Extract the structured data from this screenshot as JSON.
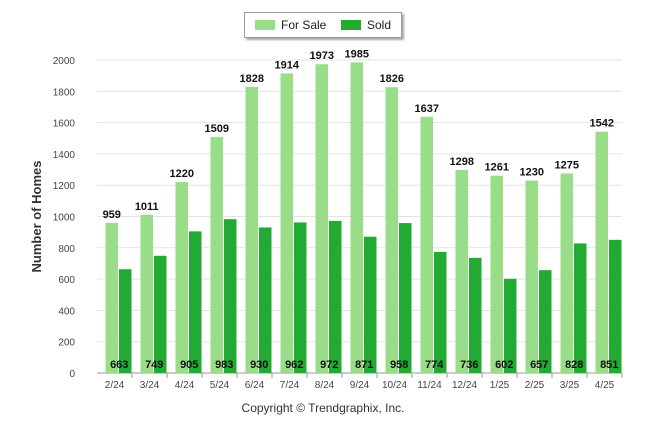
{
  "legend": {
    "for_sale": "For Sale",
    "sold": "Sold"
  },
  "footer": {
    "copyright": "Copyright © Trendgraphix, Inc."
  },
  "colors": {
    "for_sale": "#99dd88",
    "sold": "#22aa33",
    "grid": "#e3e3e3",
    "axis": "#999999"
  },
  "chart_data": {
    "type": "bar",
    "title": "",
    "xlabel": "",
    "ylabel": "Number of Homes",
    "ylim": [
      0,
      2000
    ],
    "yticks": [
      0,
      200,
      400,
      600,
      800,
      1000,
      1200,
      1400,
      1600,
      1800,
      2000
    ],
    "grid": true,
    "legend_position": "top-center",
    "categories": [
      "2/24",
      "3/24",
      "4/24",
      "5/24",
      "6/24",
      "7/24",
      "8/24",
      "9/24",
      "10/24",
      "11/24",
      "12/24",
      "1/25",
      "2/25",
      "3/25",
      "4/25"
    ],
    "series": [
      {
        "name": "For Sale",
        "values": [
          959,
          1011,
          1220,
          1509,
          1828,
          1914,
          1973,
          1985,
          1826,
          1637,
          1298,
          1261,
          1230,
          1275,
          1542
        ]
      },
      {
        "name": "Sold",
        "values": [
          663,
          749,
          905,
          983,
          930,
          962,
          972,
          871,
          958,
          774,
          736,
          602,
          657,
          828,
          851
        ]
      }
    ]
  }
}
